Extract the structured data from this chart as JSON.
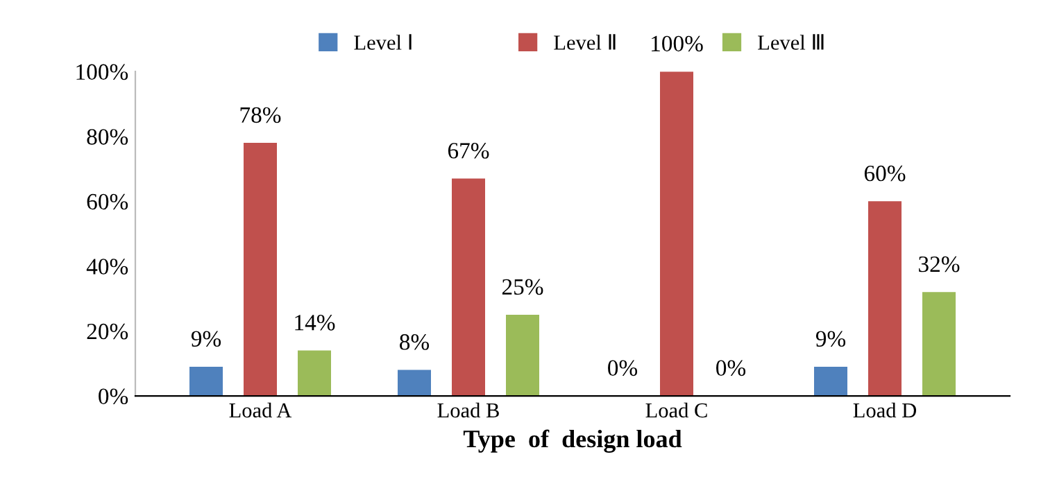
{
  "chart_data": {
    "type": "bar",
    "xlabel": "Type  of  design load",
    "categories": [
      "Load A",
      "Load B",
      "Load C",
      "Load D"
    ],
    "series": [
      {
        "name": "Level Ⅰ",
        "color": "#4f81bd",
        "values": [
          9,
          8,
          0,
          9
        ]
      },
      {
        "name": "Level Ⅱ",
        "color": "#c0504d",
        "values": [
          78,
          67,
          100,
          60
        ]
      },
      {
        "name": "Level Ⅲ",
        "color": "#9bbb59",
        "values": [
          14,
          25,
          0,
          32
        ]
      }
    ],
    "ylim": [
      0,
      100
    ],
    "yticks": [
      {
        "value": 0,
        "label": "0%"
      },
      {
        "value": 20,
        "label": "20%"
      },
      {
        "value": 40,
        "label": "40%"
      },
      {
        "value": 60,
        "label": "60%"
      },
      {
        "value": 80,
        "label": "80%"
      },
      {
        "value": 100,
        "label": "100%"
      }
    ],
    "value_labels": [
      [
        "9%",
        "8%",
        "0%",
        "9%"
      ],
      [
        "78%",
        "67%",
        "100%",
        "60%"
      ],
      [
        "14%",
        "25%",
        "0%",
        "32%"
      ]
    ],
    "legend": "top",
    "grid": false
  }
}
